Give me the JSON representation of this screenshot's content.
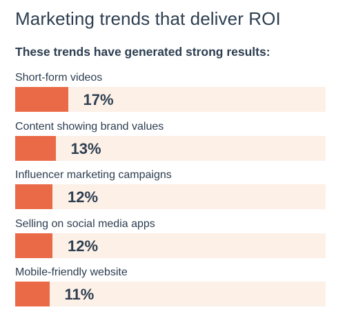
{
  "title": "Marketing trends that deliver ROI",
  "subtitle": "These trends have generated strong results:",
  "colors": {
    "bar": "#ea6a47",
    "track": "#fcf0e7",
    "text": "#2d3e50"
  },
  "chart_data": {
    "type": "bar",
    "orientation": "horizontal",
    "title": "Marketing trends that deliver ROI",
    "subtitle": "These trends have generated strong results:",
    "categories": [
      "Short-form videos",
      "Content showing brand values",
      "Influencer marketing campaigns",
      "Selling on social media apps",
      "Mobile-friendly website"
    ],
    "values": [
      17,
      13,
      12,
      12,
      11
    ],
    "value_labels": [
      "17%",
      "13%",
      "12%",
      "12%",
      "11%"
    ],
    "unit": "%",
    "xlim": [
      0,
      100
    ],
    "grid": false,
    "legend": "none"
  }
}
